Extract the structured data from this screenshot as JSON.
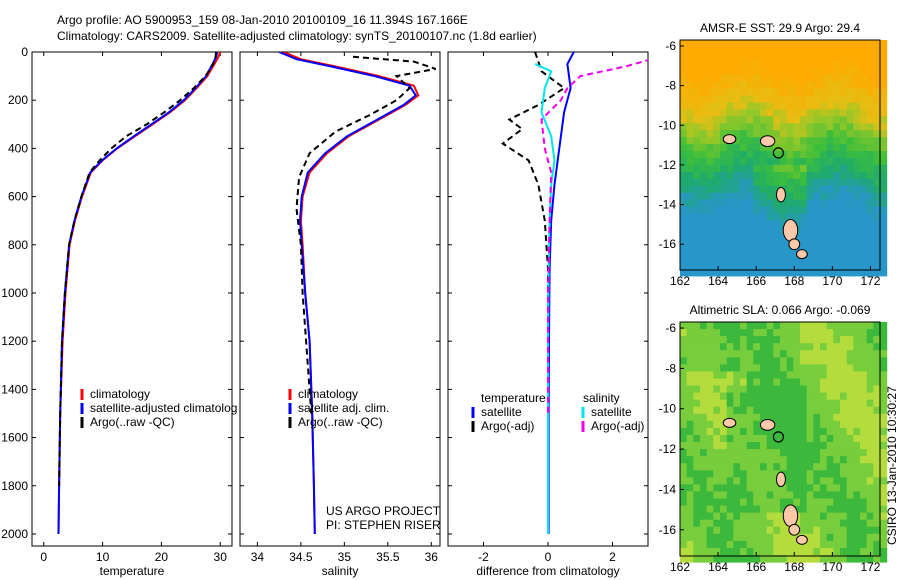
{
  "header": {
    "title_line1": "Argo profile: AO 5900953_159 08-Jan-2010 20100109_16 11.394S 167.166E",
    "title_line2": "Climatology: CARS2009. Satellite-adjusted climatology: synTS_20100107.nc (1.8d earlier)"
  },
  "credit": "CSIRO 13-Jan-2010 10:30:27",
  "colors": {
    "climatology": "#ff0000",
    "satellite": "#0000ff",
    "argo": "#000000",
    "satellite_diff": "#00e5ee",
    "argo_diff": "#ee00ee"
  },
  "chart_data": [
    {
      "type": "line",
      "xlabel": "temperature",
      "xlim": [
        -2,
        32
      ],
      "ylim": [
        2050,
        0
      ],
      "xticks": [
        0,
        10,
        20,
        30
      ],
      "yticks": [
        0,
        200,
        400,
        600,
        800,
        1000,
        1200,
        1400,
        1600,
        1800,
        2000
      ],
      "legend": [
        "climatology",
        "satellite-adjusted climatolog",
        "Argo(..raw -QC)"
      ],
      "series": [
        {
          "name": "climatology",
          "color": "#ff0000",
          "dash": "solid",
          "x": [
            30.0,
            29.7,
            29.0,
            27.8,
            26.0,
            24.0,
            21.5,
            18.5,
            15.5,
            12.5,
            10.0,
            8.0,
            6.5,
            5.3,
            4.4,
            3.7,
            3.2,
            2.8,
            2.6,
            2.5
          ],
          "y": [
            0,
            20,
            50,
            100,
            150,
            200,
            250,
            300,
            350,
            400,
            450,
            500,
            600,
            700,
            800,
            1000,
            1200,
            1500,
            1800,
            2000
          ]
        },
        {
          "name": "satellite-adjusted climatolog",
          "color": "#0000ff",
          "dash": "solid",
          "x": [
            29.5,
            29.3,
            28.7,
            27.6,
            25.8,
            23.8,
            21.3,
            18.3,
            15.3,
            12.4,
            9.9,
            7.9,
            6.4,
            5.2,
            4.3,
            3.6,
            3.1,
            2.8,
            2.6,
            2.5
          ],
          "y": [
            0,
            20,
            50,
            100,
            150,
            200,
            250,
            300,
            350,
            400,
            450,
            500,
            600,
            700,
            800,
            1000,
            1200,
            1500,
            1800,
            2000
          ]
        },
        {
          "name": "Argo(..raw -QC)",
          "color": "#000000",
          "dash": "dash",
          "x": [
            29.3,
            29.2,
            28.8,
            27.5,
            25.5,
            23.2,
            20.5,
            17.5,
            14.0,
            11.5,
            9.5,
            7.8,
            6.4,
            5.2,
            4.3,
            3.6,
            3.1,
            2.8,
            2.6
          ],
          "y": [
            0,
            20,
            50,
            100,
            150,
            200,
            250,
            300,
            350,
            400,
            450,
            500,
            600,
            700,
            800,
            1000,
            1200,
            1500,
            1800
          ]
        }
      ]
    },
    {
      "type": "line",
      "xlabel": "salinity",
      "xlim": [
        33.8,
        36.1
      ],
      "ylim": [
        2050,
        0
      ],
      "xticks": [
        34,
        34.5,
        35,
        35.5,
        36
      ],
      "legend": [
        "climatology",
        "satellite adj. clim.",
        "Argo(..raw -QC)"
      ],
      "annotations": [
        "US ARGO PROJECT",
        "PI: STEPHEN RISER"
      ],
      "series": [
        {
          "name": "climatology",
          "color": "#ff0000",
          "dash": "solid",
          "x": [
            34.3,
            34.5,
            34.9,
            35.4,
            35.8,
            35.85,
            35.7,
            35.4,
            35.05,
            34.8,
            34.6,
            34.52,
            34.5,
            34.52,
            34.55,
            34.6,
            34.63,
            34.65,
            34.66
          ],
          "y": [
            0,
            30,
            60,
            100,
            140,
            180,
            220,
            280,
            350,
            420,
            500,
            600,
            700,
            800,
            1000,
            1200,
            1500,
            1800,
            2000
          ]
        },
        {
          "name": "satellite adj. clim.",
          "color": "#0000ff",
          "dash": "solid",
          "x": [
            34.25,
            34.45,
            34.85,
            35.35,
            35.75,
            35.82,
            35.68,
            35.38,
            35.03,
            34.78,
            34.58,
            34.51,
            34.49,
            34.51,
            34.55,
            34.6,
            34.63,
            34.65,
            34.66
          ],
          "y": [
            0,
            30,
            60,
            100,
            140,
            180,
            220,
            280,
            350,
            420,
            500,
            600,
            700,
            800,
            1000,
            1200,
            1500,
            1800,
            2000
          ]
        },
        {
          "name": "Argo(..raw -QC)",
          "color": "#000000",
          "dash": "dash",
          "x": [
            35.1,
            35.8,
            36.05,
            35.6,
            35.75,
            35.6,
            35.3,
            34.9,
            34.6,
            34.48,
            34.45,
            34.5,
            34.52,
            34.56,
            34.62
          ],
          "y": [
            20,
            40,
            70,
            100,
            150,
            200,
            260,
            330,
            420,
            520,
            650,
            800,
            1000,
            1200,
            1500
          ]
        }
      ]
    },
    {
      "type": "line",
      "xlabel": "difference from climatology",
      "xlim": [
        -3.1,
        3.1
      ],
      "ylim": [
        2050,
        0
      ],
      "xticks": [
        -2,
        0,
        2
      ],
      "legend_columns": [
        {
          "header": "temperature",
          "entries": [
            "satellite",
            "Argo(-adj)"
          ]
        },
        {
          "header": "salinity",
          "entries": [
            "satellite",
            "Argo(-adj)"
          ]
        }
      ],
      "series": [
        {
          "name": "temperature satellite",
          "color": "#0000ff",
          "dash": "solid",
          "x": [
            0.8,
            0.6,
            0.7,
            0.5,
            0.4,
            0.3,
            0.2,
            0.1,
            0.05,
            0.03,
            0.02,
            0.02,
            0.02
          ],
          "y": [
            0,
            50,
            150,
            250,
            350,
            450,
            550,
            700,
            900,
            1200,
            1500,
            1800,
            2000
          ]
        },
        {
          "name": "temperature Argo(-adj)",
          "color": "#000000",
          "dash": "dash",
          "x": [
            -0.4,
            -0.2,
            0.5,
            -0.3,
            -1.2,
            -0.8,
            -1.4,
            -0.6,
            -0.3,
            -0.1,
            0.0,
            0.0,
            0.0
          ],
          "y": [
            0,
            80,
            150,
            220,
            280,
            320,
            380,
            450,
            550,
            700,
            900,
            1200,
            1500
          ]
        },
        {
          "name": "salinity satellite",
          "color": "#00e5ee",
          "dash": "solid",
          "x": [
            -0.4,
            0.1,
            -0.1,
            -0.2,
            0.1,
            0.2,
            0.1,
            0.05,
            0.02,
            0.0,
            0.0,
            0.0
          ],
          "y": [
            50,
            80,
            150,
            250,
            350,
            450,
            550,
            700,
            900,
            1200,
            1500,
            2000
          ]
        },
        {
          "name": "salinity Argo(-adj)",
          "color": "#ee00ee",
          "dash": "dash",
          "x": [
            3.2,
            2.4,
            1.0,
            0.6,
            0.4,
            -0.2,
            -0.1,
            0.1,
            0.05,
            0.0,
            0.0
          ],
          "y": [
            30,
            60,
            100,
            150,
            200,
            280,
            400,
            500,
            700,
            1000,
            1500
          ]
        }
      ]
    },
    {
      "type": "heatmap",
      "title": "AMSR-E SST: 29.9 Argo: 29.4",
      "xlim": [
        162,
        172.5
      ],
      "ylim": [
        -17.3,
        -5.7
      ],
      "xticks": [
        162,
        164,
        166,
        168,
        170,
        172
      ],
      "yticks": [
        -6,
        -8,
        -10,
        -12,
        -14,
        -16
      ],
      "profile_location": {
        "lon": 167.166,
        "lat": -11.394
      }
    },
    {
      "type": "heatmap",
      "title": "Altimetric SLA: 0.066 Argo: -0.069",
      "xlim": [
        162,
        172.5
      ],
      "ylim": [
        -17.3,
        -5.7
      ],
      "xticks": [
        162,
        164,
        166,
        168,
        170,
        172
      ],
      "yticks": [
        -6,
        -8,
        -10,
        -12,
        -14,
        -16
      ],
      "profile_location": {
        "lon": 167.166,
        "lat": -11.394
      }
    }
  ]
}
